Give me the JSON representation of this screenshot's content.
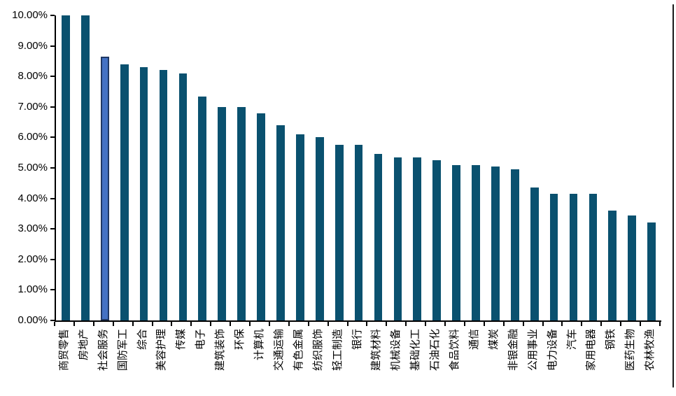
{
  "chart_data": {
    "type": "bar",
    "title": "",
    "xlabel": "",
    "ylabel": "",
    "ylim": [
      0,
      10
    ],
    "ytick_step": 1,
    "ytick_labels": [
      "10.00%",
      "9.00%",
      "8.00%",
      "7.00%",
      "6.00%",
      "5.00%",
      "4.00%",
      "3.00%",
      "2.00%",
      "1.00%",
      "0.00%"
    ],
    "grid": false,
    "legend_position": "none",
    "categories": [
      "商贸零售",
      "房地产",
      "社会服务",
      "国防军工",
      "综合",
      "美容护理",
      "传媒",
      "电子",
      "建筑装饰",
      "环保",
      "计算机",
      "交通运输",
      "有色金属",
      "纺织服饰",
      "轻工制造",
      "银行",
      "建筑材料",
      "机械设备",
      "基础化工",
      "石油石化",
      "食品饮料",
      "通信",
      "煤炭",
      "非银金融",
      "公用事业",
      "电力设备",
      "汽车",
      "家用电器",
      "钢铁",
      "医药生物",
      "农林牧渔"
    ],
    "values": [
      10.0,
      10.0,
      8.65,
      8.4,
      8.3,
      8.2,
      8.1,
      7.35,
      7.0,
      7.0,
      6.8,
      6.4,
      6.1,
      6.0,
      5.75,
      5.75,
      5.45,
      5.35,
      5.35,
      5.25,
      5.1,
      5.1,
      5.05,
      4.95,
      4.35,
      4.15,
      4.15,
      4.15,
      3.6,
      3.45,
      3.2
    ],
    "highlighted_category": "社会服务",
    "highlight_index": 2
  },
  "colors": {
    "bar": "#0A516F",
    "highlight_fill": "#4472C4",
    "highlight_border": "#1F3864",
    "axis": "#000000",
    "background": "#FFFFFF"
  }
}
